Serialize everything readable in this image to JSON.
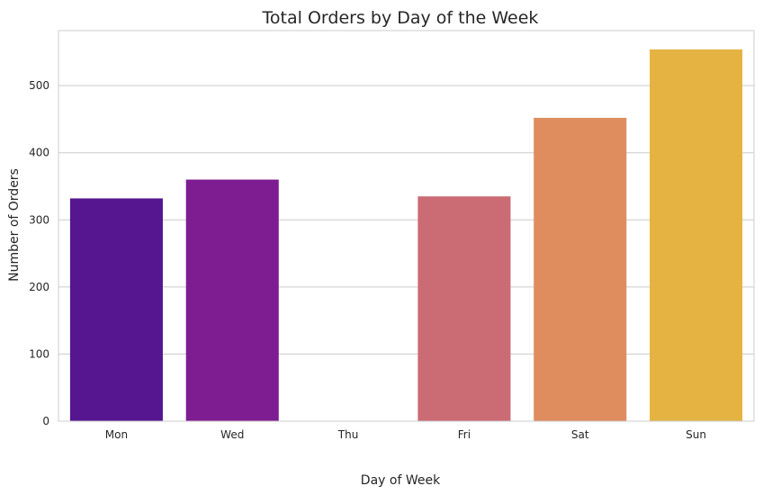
{
  "chart_data": {
    "type": "bar",
    "title": "Total Orders by Day of the Week",
    "xlabel": "Day of Week",
    "ylabel": "Number of Orders",
    "categories": [
      "Mon",
      "Wed",
      "Thu",
      "Fri",
      "Sat",
      "Sun"
    ],
    "values": [
      332,
      360,
      0,
      335,
      452,
      554
    ],
    "colors": [
      "#55168f",
      "#7e1d91",
      "#b13a78",
      "#cb6b74",
      "#df8d5f",
      "#e5b342"
    ],
    "ylim": [
      0,
      582
    ],
    "yticks": [
      0,
      100,
      200,
      300,
      400,
      500
    ],
    "grid": true,
    "legend": false
  }
}
